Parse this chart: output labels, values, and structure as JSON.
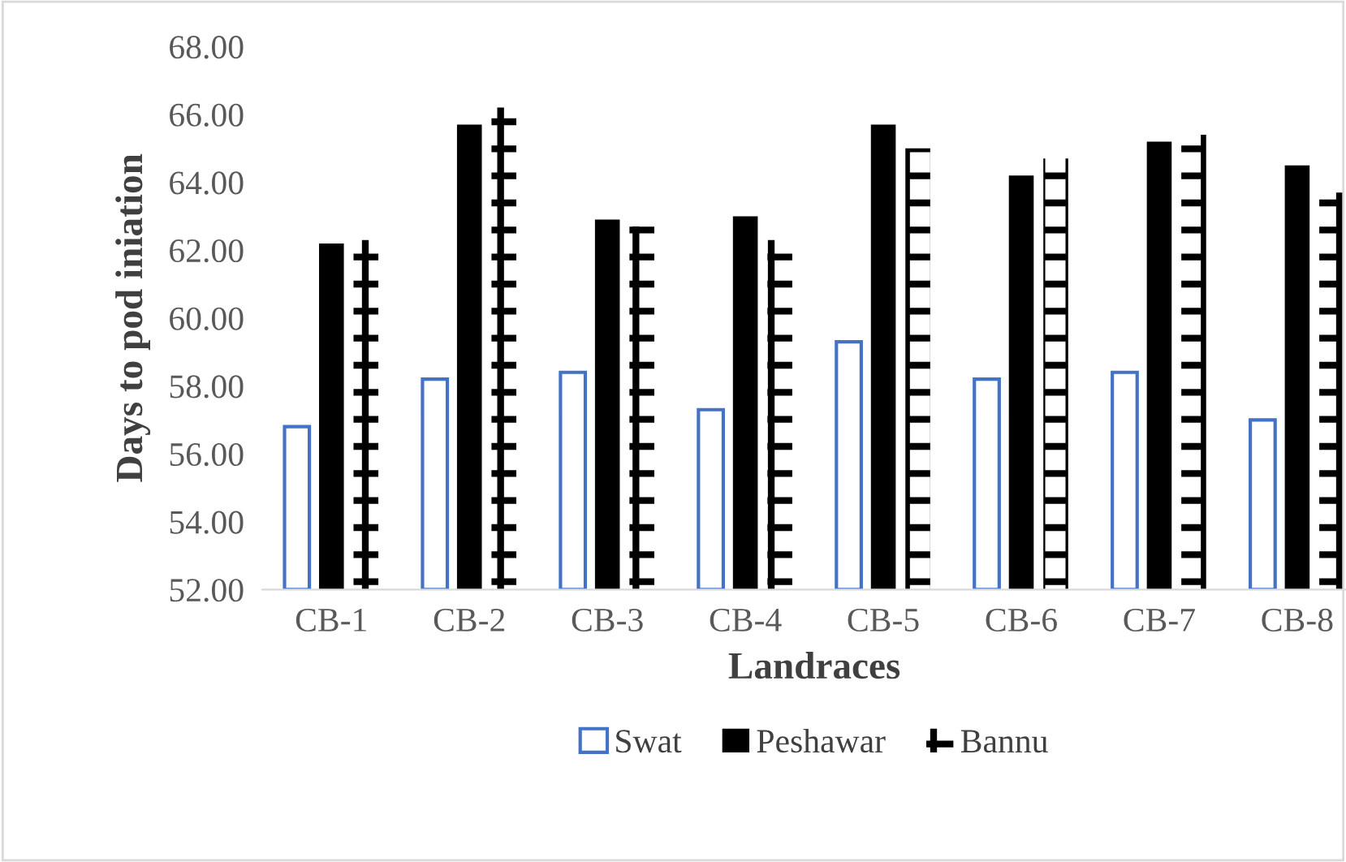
{
  "chart_data": {
    "type": "bar",
    "xlabel": "Landraces",
    "ylabel": "Days to pod iniation",
    "categories": [
      "CB-1",
      "CB-2",
      "CB-3",
      "CB-4",
      "CB-5",
      "CB-6",
      "CB-7",
      "CB-8"
    ],
    "series": [
      {
        "name": "Swat",
        "color": "#4472c4",
        "values": [
          56.8,
          58.2,
          58.4,
          57.3,
          59.3,
          58.2,
          58.4,
          57.0
        ]
      },
      {
        "name": "Peshawar",
        "color": "#000000",
        "values": [
          62.2,
          65.7,
          62.9,
          63.0,
          65.7,
          64.2,
          65.2,
          64.5
        ]
      },
      {
        "name": "Bannu",
        "color": "#000000",
        "values": [
          62.3,
          66.2,
          62.7,
          62.3,
          65.0,
          64.7,
          65.4,
          63.7
        ]
      }
    ],
    "ylim": [
      52,
      68
    ],
    "yticks": [
      {
        "value": 52,
        "label": "52.00"
      },
      {
        "value": 54,
        "label": "54.00"
      },
      {
        "value": 56,
        "label": "56.00"
      },
      {
        "value": 58,
        "label": "58.00"
      },
      {
        "value": 60,
        "label": "60.00"
      },
      {
        "value": 62,
        "label": "62.00"
      },
      {
        "value": 64,
        "label": "64.00"
      },
      {
        "value": 66,
        "label": "66.00"
      },
      {
        "value": 68,
        "label": "68.00"
      }
    ],
    "grid": false,
    "legend": "bottom"
  }
}
